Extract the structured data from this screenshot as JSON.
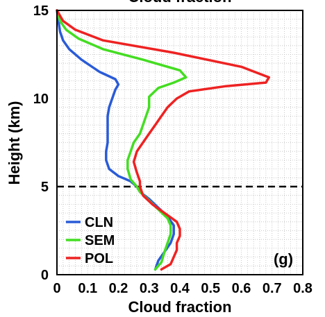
{
  "chart_data": {
    "type": "line",
    "title": "Cloud fraction",
    "xlabel": "Cloud fraction",
    "ylabel": "Height (km)",
    "xlim": [
      0,
      0.8
    ],
    "ylim": [
      0,
      15
    ],
    "xticks": [
      "0",
      "0.1",
      "0.2",
      "0.3",
      "0.4",
      "0.5",
      "0.6",
      "0.7",
      "0.8"
    ],
    "yticks": [
      "0",
      "5",
      "10",
      "15"
    ],
    "grid": true,
    "legend_position": "bottom-left",
    "panel_label": "(g)",
    "reference_line": {
      "y": 5,
      "style": "dashed",
      "color": "#000000"
    },
    "series": [
      {
        "name": "CLN",
        "color": "#2a5bd7",
        "points": [
          [
            0.32,
            0.3
          ],
          [
            0.33,
            0.8
          ],
          [
            0.35,
            1.3
          ],
          [
            0.37,
            1.8
          ],
          [
            0.38,
            2.3
          ],
          [
            0.38,
            2.8
          ],
          [
            0.36,
            3.3
          ],
          [
            0.33,
            3.8
          ],
          [
            0.3,
            4.3
          ],
          [
            0.27,
            4.7
          ],
          [
            0.26,
            5.0
          ],
          [
            0.24,
            5.3
          ],
          [
            0.2,
            5.6
          ],
          [
            0.17,
            6.0
          ],
          [
            0.16,
            6.5
          ],
          [
            0.16,
            7.0
          ],
          [
            0.165,
            7.5
          ],
          [
            0.165,
            8.0
          ],
          [
            0.165,
            8.5
          ],
          [
            0.165,
            9.0
          ],
          [
            0.17,
            9.5
          ],
          [
            0.18,
            10.0
          ],
          [
            0.19,
            10.5
          ],
          [
            0.2,
            10.8
          ],
          [
            0.19,
            11.1
          ],
          [
            0.14,
            11.5
          ],
          [
            0.08,
            12.2
          ],
          [
            0.04,
            12.8
          ],
          [
            0.02,
            13.3
          ],
          [
            0.01,
            13.8
          ],
          [
            0.005,
            14.4
          ],
          [
            0,
            15
          ]
        ]
      },
      {
        "name": "SEM",
        "color": "#44dd22",
        "points": [
          [
            0.32,
            0.3
          ],
          [
            0.34,
            0.7
          ],
          [
            0.35,
            1.3
          ],
          [
            0.36,
            1.8
          ],
          [
            0.37,
            2.3
          ],
          [
            0.37,
            2.8
          ],
          [
            0.36,
            3.2
          ],
          [
            0.33,
            3.7
          ],
          [
            0.3,
            4.2
          ],
          [
            0.27,
            4.7
          ],
          [
            0.26,
            5.0
          ],
          [
            0.24,
            5.4
          ],
          [
            0.23,
            6.0
          ],
          [
            0.23,
            6.5
          ],
          [
            0.24,
            7.0
          ],
          [
            0.25,
            7.5
          ],
          [
            0.27,
            8.0
          ],
          [
            0.28,
            8.5
          ],
          [
            0.29,
            9.0
          ],
          [
            0.3,
            9.5
          ],
          [
            0.3,
            10.1
          ],
          [
            0.33,
            10.6
          ],
          [
            0.38,
            10.9
          ],
          [
            0.42,
            11.2
          ],
          [
            0.4,
            11.6
          ],
          [
            0.28,
            12.2
          ],
          [
            0.15,
            12.8
          ],
          [
            0.07,
            13.4
          ],
          [
            0.03,
            13.9
          ],
          [
            0.01,
            14.4
          ],
          [
            0,
            15
          ]
        ]
      },
      {
        "name": "POL",
        "color": "#ee2222",
        "points": [
          [
            0.34,
            0.3
          ],
          [
            0.37,
            0.6
          ],
          [
            0.38,
            1.0
          ],
          [
            0.39,
            1.4
          ],
          [
            0.39,
            1.8
          ],
          [
            0.4,
            2.2
          ],
          [
            0.4,
            2.6
          ],
          [
            0.39,
            3.0
          ],
          [
            0.35,
            3.5
          ],
          [
            0.31,
            4.0
          ],
          [
            0.28,
            4.5
          ],
          [
            0.27,
            5.0
          ],
          [
            0.27,
            5.3
          ],
          [
            0.26,
            5.8
          ],
          [
            0.25,
            6.4
          ],
          [
            0.26,
            7.0
          ],
          [
            0.28,
            7.5
          ],
          [
            0.3,
            8.0
          ],
          [
            0.32,
            8.5
          ],
          [
            0.34,
            9.0
          ],
          [
            0.36,
            9.5
          ],
          [
            0.39,
            10.0
          ],
          [
            0.43,
            10.4
          ],
          [
            0.55,
            10.7
          ],
          [
            0.68,
            10.9
          ],
          [
            0.69,
            11.2
          ],
          [
            0.6,
            11.8
          ],
          [
            0.38,
            12.6
          ],
          [
            0.15,
            13.3
          ],
          [
            0.06,
            13.9
          ],
          [
            0.02,
            14.4
          ],
          [
            0,
            15
          ]
        ]
      }
    ]
  }
}
